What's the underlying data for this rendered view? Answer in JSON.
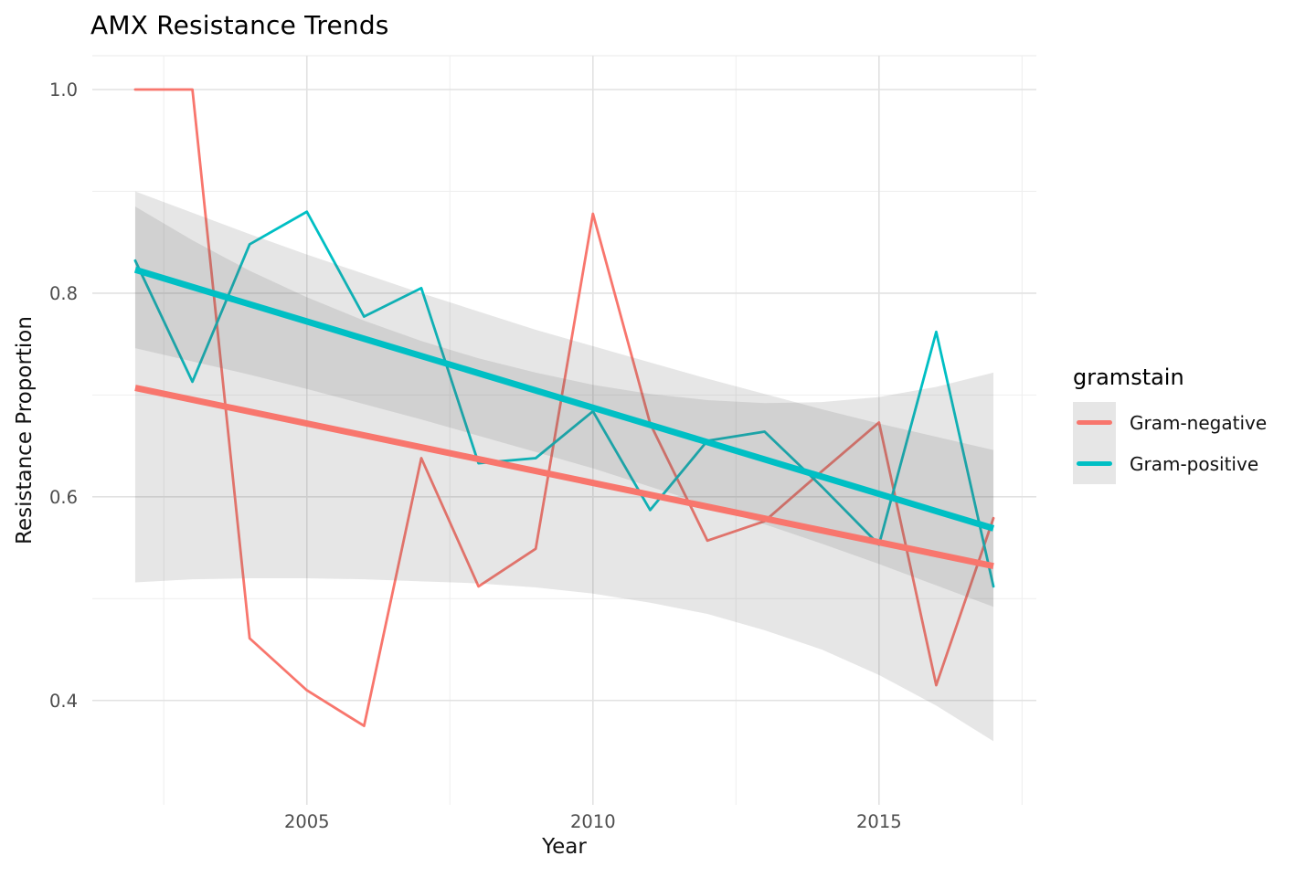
{
  "chart_data": {
    "type": "line",
    "title": "AMX Resistance Trends",
    "xlabel": "Year",
    "ylabel": "Resistance Proportion",
    "x": [
      2002,
      2003,
      2004,
      2005,
      2006,
      2007,
      2008,
      2009,
      2010,
      2011,
      2012,
      2013,
      2014,
      2015,
      2016,
      2017
    ],
    "xlim": [
      2001.25,
      2017.75
    ],
    "ylim": [
      0.2975,
      1.0332
    ],
    "x_ticks": {
      "values": [
        2005,
        2010,
        2015
      ],
      "labels": [
        "2005",
        "2010",
        "2015"
      ]
    },
    "x_minor": [
      2002.5,
      2007.5,
      2012.5,
      2017.5
    ],
    "y_ticks": {
      "values": [
        0.4,
        0.6,
        0.8,
        1.0
      ],
      "labels": [
        "0.4",
        "0.6",
        "0.8",
        "1.0"
      ]
    },
    "y_minor": [
      0.5,
      0.7,
      0.9
    ],
    "grid": true,
    "legend": {
      "title": "gramstain",
      "position": "right"
    },
    "smoothing": "linear trend with confidence ribbon per series",
    "series": [
      {
        "name": "Gram-negative",
        "color": "#F8766D",
        "values": [
          1.0,
          1.0,
          0.461,
          0.41,
          0.375,
          0.638,
          0.512,
          0.549,
          0.878,
          0.672,
          0.557,
          0.576,
          0.625,
          0.673,
          0.415,
          0.579
        ],
        "trend": {
          "x": [
            2002,
            2017
          ],
          "y": [
            0.707,
            0.532
          ]
        },
        "ci_upper": [
          0.885,
          0.852,
          0.822,
          0.796,
          0.773,
          0.753,
          0.736,
          0.722,
          0.71,
          0.701,
          0.695,
          0.692,
          0.693,
          0.698,
          0.708,
          0.722
        ],
        "ci_lower": [
          0.516,
          0.519,
          0.52,
          0.52,
          0.519,
          0.517,
          0.515,
          0.511,
          0.505,
          0.496,
          0.485,
          0.469,
          0.45,
          0.425,
          0.395,
          0.36
        ]
      },
      {
        "name": "Gram-positive",
        "color": "#00BFC4",
        "values": [
          0.832,
          0.713,
          0.848,
          0.88,
          0.777,
          0.805,
          0.633,
          0.638,
          0.684,
          0.587,
          0.655,
          0.664,
          0.61,
          0.553,
          0.762,
          0.512
        ],
        "trend": {
          "x": [
            2002,
            2017
          ],
          "y": [
            0.823,
            0.569
          ]
        },
        "ci_upper": [
          0.9,
          0.879,
          0.858,
          0.838,
          0.819,
          0.8,
          0.782,
          0.764,
          0.748,
          0.732,
          0.716,
          0.701,
          0.686,
          0.672,
          0.659,
          0.646
        ],
        "ci_lower": [
          0.746,
          0.733,
          0.72,
          0.706,
          0.691,
          0.676,
          0.66,
          0.644,
          0.628,
          0.61,
          0.592,
          0.573,
          0.554,
          0.534,
          0.513,
          0.492
        ]
      }
    ],
    "ribbon": {
      "color": "#666666",
      "opacity": 0.16
    },
    "colors": {
      "grid_major": "#E2E2E2",
      "grid_minor": "#EFEFEF",
      "panel_edge": "#E9E9E9",
      "tick_label": "#4D4D4D",
      "axis_title": "#111111",
      "title": "#000000",
      "background": "#FFFFFF"
    }
  }
}
